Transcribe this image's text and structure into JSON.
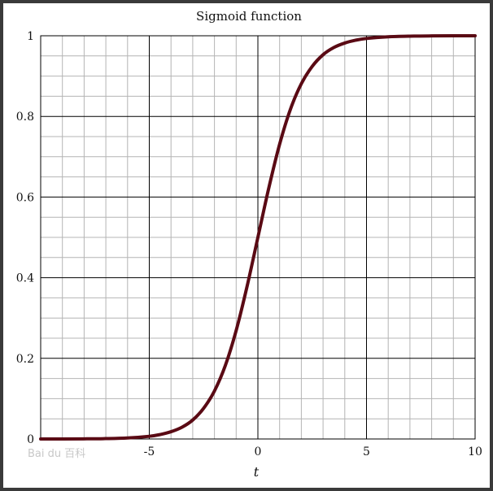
{
  "watermark": "Bai du 百科",
  "chart_data": {
    "type": "line",
    "title": "Sigmoid function",
    "xlabel": "t",
    "ylabel": "",
    "xlim": [
      -10,
      10
    ],
    "ylim": [
      0,
      1
    ],
    "x_ticks": [
      {
        "value": -5,
        "label": "-5"
      },
      {
        "value": 0,
        "label": "0"
      },
      {
        "value": 5,
        "label": "5"
      },
      {
        "value": 10,
        "label": "10"
      }
    ],
    "y_ticks": [
      {
        "value": 0,
        "label": "0"
      },
      {
        "value": 0.2,
        "label": "0.2"
      },
      {
        "value": 0.4,
        "label": "0.4"
      },
      {
        "value": 0.6,
        "label": "0.6"
      },
      {
        "value": 0.8,
        "label": "0.8"
      },
      {
        "value": 1,
        "label": "1"
      }
    ],
    "grid": true,
    "line_color": "#5a0a14",
    "series": [
      {
        "x": [
          -10,
          -9,
          -8,
          -7,
          -6,
          -5,
          -4.5,
          -4,
          -3.5,
          -3,
          -2.5,
          -2,
          -1.5,
          -1,
          -0.5,
          0,
          0.5,
          1,
          1.5,
          2,
          2.5,
          3,
          3.5,
          4,
          4.5,
          5,
          6,
          7,
          8,
          9,
          10
        ],
        "values": [
          5e-05,
          0.00012,
          0.00034,
          0.00091,
          0.0025,
          0.0067,
          0.011,
          0.018,
          0.029,
          0.047,
          0.076,
          0.119,
          0.182,
          0.269,
          0.378,
          0.5,
          0.622,
          0.731,
          0.818,
          0.881,
          0.924,
          0.953,
          0.971,
          0.982,
          0.989,
          0.9933,
          0.9975,
          0.9991,
          0.99966,
          0.99988,
          0.99995
        ]
      }
    ]
  }
}
